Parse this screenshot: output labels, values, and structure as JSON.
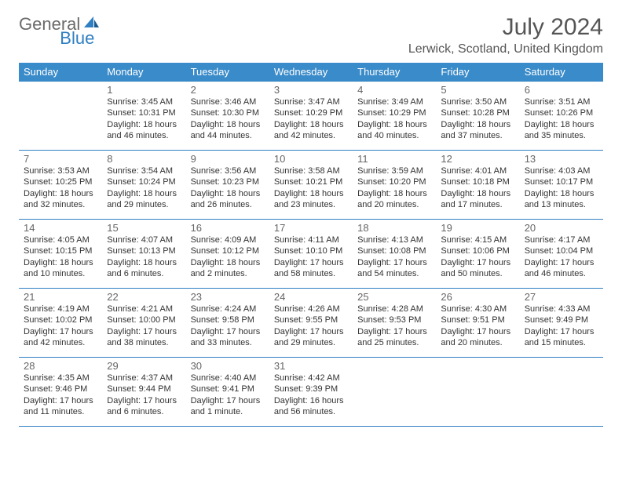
{
  "brand": {
    "general": "General",
    "blue": "Blue"
  },
  "title": {
    "month": "July 2024",
    "location": "Lerwick, Scotland, United Kingdom"
  },
  "colors": {
    "header_bg": "#3a8bc9",
    "border": "#2f7fc2",
    "brand_grey": "#6a6a6a",
    "brand_blue": "#2f7fc2"
  },
  "weekdays": [
    "Sunday",
    "Monday",
    "Tuesday",
    "Wednesday",
    "Thursday",
    "Friday",
    "Saturday"
  ],
  "weeks": [
    [
      null,
      {
        "n": "1",
        "sr": "Sunrise: 3:45 AM",
        "ss": "Sunset: 10:31 PM",
        "d1": "Daylight: 18 hours",
        "d2": "and 46 minutes."
      },
      {
        "n": "2",
        "sr": "Sunrise: 3:46 AM",
        "ss": "Sunset: 10:30 PM",
        "d1": "Daylight: 18 hours",
        "d2": "and 44 minutes."
      },
      {
        "n": "3",
        "sr": "Sunrise: 3:47 AM",
        "ss": "Sunset: 10:29 PM",
        "d1": "Daylight: 18 hours",
        "d2": "and 42 minutes."
      },
      {
        "n": "4",
        "sr": "Sunrise: 3:49 AM",
        "ss": "Sunset: 10:29 PM",
        "d1": "Daylight: 18 hours",
        "d2": "and 40 minutes."
      },
      {
        "n": "5",
        "sr": "Sunrise: 3:50 AM",
        "ss": "Sunset: 10:28 PM",
        "d1": "Daylight: 18 hours",
        "d2": "and 37 minutes."
      },
      {
        "n": "6",
        "sr": "Sunrise: 3:51 AM",
        "ss": "Sunset: 10:26 PM",
        "d1": "Daylight: 18 hours",
        "d2": "and 35 minutes."
      }
    ],
    [
      {
        "n": "7",
        "sr": "Sunrise: 3:53 AM",
        "ss": "Sunset: 10:25 PM",
        "d1": "Daylight: 18 hours",
        "d2": "and 32 minutes."
      },
      {
        "n": "8",
        "sr": "Sunrise: 3:54 AM",
        "ss": "Sunset: 10:24 PM",
        "d1": "Daylight: 18 hours",
        "d2": "and 29 minutes."
      },
      {
        "n": "9",
        "sr": "Sunrise: 3:56 AM",
        "ss": "Sunset: 10:23 PM",
        "d1": "Daylight: 18 hours",
        "d2": "and 26 minutes."
      },
      {
        "n": "10",
        "sr": "Sunrise: 3:58 AM",
        "ss": "Sunset: 10:21 PM",
        "d1": "Daylight: 18 hours",
        "d2": "and 23 minutes."
      },
      {
        "n": "11",
        "sr": "Sunrise: 3:59 AM",
        "ss": "Sunset: 10:20 PM",
        "d1": "Daylight: 18 hours",
        "d2": "and 20 minutes."
      },
      {
        "n": "12",
        "sr": "Sunrise: 4:01 AM",
        "ss": "Sunset: 10:18 PM",
        "d1": "Daylight: 18 hours",
        "d2": "and 17 minutes."
      },
      {
        "n": "13",
        "sr": "Sunrise: 4:03 AM",
        "ss": "Sunset: 10:17 PM",
        "d1": "Daylight: 18 hours",
        "d2": "and 13 minutes."
      }
    ],
    [
      {
        "n": "14",
        "sr": "Sunrise: 4:05 AM",
        "ss": "Sunset: 10:15 PM",
        "d1": "Daylight: 18 hours",
        "d2": "and 10 minutes."
      },
      {
        "n": "15",
        "sr": "Sunrise: 4:07 AM",
        "ss": "Sunset: 10:13 PM",
        "d1": "Daylight: 18 hours",
        "d2": "and 6 minutes."
      },
      {
        "n": "16",
        "sr": "Sunrise: 4:09 AM",
        "ss": "Sunset: 10:12 PM",
        "d1": "Daylight: 18 hours",
        "d2": "and 2 minutes."
      },
      {
        "n": "17",
        "sr": "Sunrise: 4:11 AM",
        "ss": "Sunset: 10:10 PM",
        "d1": "Daylight: 17 hours",
        "d2": "and 58 minutes."
      },
      {
        "n": "18",
        "sr": "Sunrise: 4:13 AM",
        "ss": "Sunset: 10:08 PM",
        "d1": "Daylight: 17 hours",
        "d2": "and 54 minutes."
      },
      {
        "n": "19",
        "sr": "Sunrise: 4:15 AM",
        "ss": "Sunset: 10:06 PM",
        "d1": "Daylight: 17 hours",
        "d2": "and 50 minutes."
      },
      {
        "n": "20",
        "sr": "Sunrise: 4:17 AM",
        "ss": "Sunset: 10:04 PM",
        "d1": "Daylight: 17 hours",
        "d2": "and 46 minutes."
      }
    ],
    [
      {
        "n": "21",
        "sr": "Sunrise: 4:19 AM",
        "ss": "Sunset: 10:02 PM",
        "d1": "Daylight: 17 hours",
        "d2": "and 42 minutes."
      },
      {
        "n": "22",
        "sr": "Sunrise: 4:21 AM",
        "ss": "Sunset: 10:00 PM",
        "d1": "Daylight: 17 hours",
        "d2": "and 38 minutes."
      },
      {
        "n": "23",
        "sr": "Sunrise: 4:24 AM",
        "ss": "Sunset: 9:58 PM",
        "d1": "Daylight: 17 hours",
        "d2": "and 33 minutes."
      },
      {
        "n": "24",
        "sr": "Sunrise: 4:26 AM",
        "ss": "Sunset: 9:55 PM",
        "d1": "Daylight: 17 hours",
        "d2": "and 29 minutes."
      },
      {
        "n": "25",
        "sr": "Sunrise: 4:28 AM",
        "ss": "Sunset: 9:53 PM",
        "d1": "Daylight: 17 hours",
        "d2": "and 25 minutes."
      },
      {
        "n": "26",
        "sr": "Sunrise: 4:30 AM",
        "ss": "Sunset: 9:51 PM",
        "d1": "Daylight: 17 hours",
        "d2": "and 20 minutes."
      },
      {
        "n": "27",
        "sr": "Sunrise: 4:33 AM",
        "ss": "Sunset: 9:49 PM",
        "d1": "Daylight: 17 hours",
        "d2": "and 15 minutes."
      }
    ],
    [
      {
        "n": "28",
        "sr": "Sunrise: 4:35 AM",
        "ss": "Sunset: 9:46 PM",
        "d1": "Daylight: 17 hours",
        "d2": "and 11 minutes."
      },
      {
        "n": "29",
        "sr": "Sunrise: 4:37 AM",
        "ss": "Sunset: 9:44 PM",
        "d1": "Daylight: 17 hours",
        "d2": "and 6 minutes."
      },
      {
        "n": "30",
        "sr": "Sunrise: 4:40 AM",
        "ss": "Sunset: 9:41 PM",
        "d1": "Daylight: 17 hours",
        "d2": "and 1 minute."
      },
      {
        "n": "31",
        "sr": "Sunrise: 4:42 AM",
        "ss": "Sunset: 9:39 PM",
        "d1": "Daylight: 16 hours",
        "d2": "and 56 minutes."
      },
      null,
      null,
      null
    ]
  ]
}
